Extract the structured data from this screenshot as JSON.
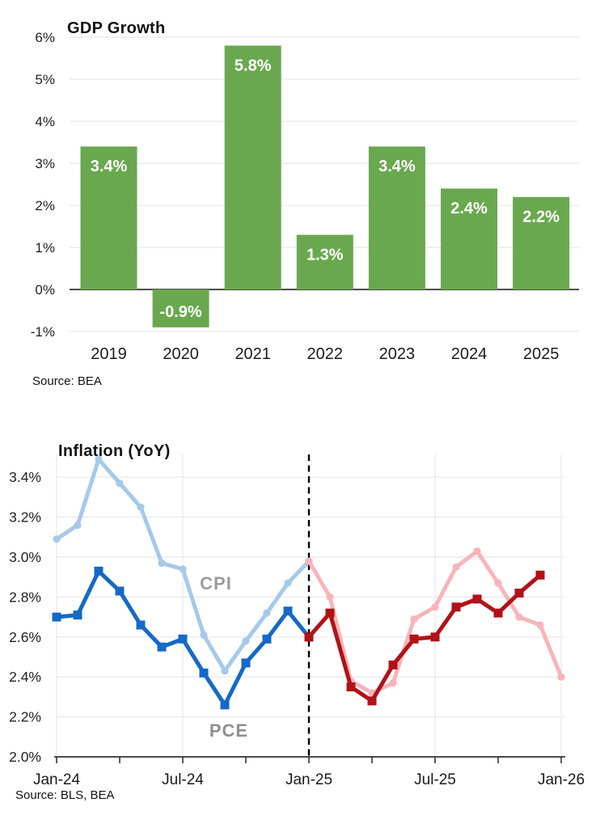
{
  "chart_data": [
    {
      "type": "bar",
      "title": "GDP Growth",
      "source": "Source: BEA",
      "xlabel": "",
      "ylabel": "",
      "categories": [
        "2019",
        "2020",
        "2021",
        "2022",
        "2023",
        "2024",
        "2025"
      ],
      "values": [
        3.4,
        -0.9,
        5.8,
        1.3,
        3.4,
        2.4,
        2.2
      ],
      "data_labels": [
        "3.4%",
        "-0.9%",
        "5.8%",
        "1.3%",
        "3.4%",
        "2.4%",
        "2.2%"
      ],
      "y_ticks": [
        "6%",
        "5%",
        "4%",
        "3%",
        "2%",
        "1%",
        "0%",
        "-1%"
      ],
      "y_tick_values": [
        6,
        5,
        4,
        3,
        2,
        1,
        0,
        -1
      ],
      "ylim": [
        -1.2,
        6.2
      ],
      "grid": "horizontal",
      "bar_color": "#6aa84f",
      "bar_label_color": "#ffffff",
      "zero_line_color": "#333333"
    },
    {
      "type": "line",
      "title": "Inflation (YoY)",
      "source": "Source: BLS, BEA",
      "xlabel": "",
      "ylabel": "",
      "x_unit": "months since Jan-2024",
      "x_tick_labels": [
        "Jan-24",
        "Jul-24",
        "Jan-25",
        "Jul-25",
        "Jan-26"
      ],
      "x_tick_months": [
        0,
        6,
        12,
        18,
        24
      ],
      "minor_tick_months": [
        3,
        9,
        15,
        21
      ],
      "gridline_months": [
        0,
        6,
        18,
        24
      ],
      "y_ticks": [
        "3.4%",
        "3.2%",
        "3.0%",
        "2.8%",
        "2.6%",
        "2.4%",
        "2.2%",
        "2.0%"
      ],
      "y_tick_values": [
        3.4,
        3.2,
        3.0,
        2.8,
        2.6,
        2.4,
        2.2,
        2.0
      ],
      "ylim": [
        2.0,
        3.5
      ],
      "divider": {
        "month": 12,
        "style": "dashed",
        "color": "#000000",
        "meaning": "forecast start (Jan-25)"
      },
      "legend_position": "inline-annotations",
      "annotations": [
        {
          "text": "CPI",
          "color": "#9c9c9c",
          "x_month": 7.6,
          "y_value": 2.86
        },
        {
          "text": "PCE",
          "color": "#8f8f8f",
          "x_month": 8.2,
          "y_value": 2.13
        }
      ],
      "series": [
        {
          "name": "CPI actual",
          "color": "#a6c9ea",
          "marker": "circle",
          "line_width": 5,
          "start_month": 0,
          "values": [
            3.09,
            3.16,
            3.49,
            3.37,
            3.25,
            2.97,
            2.94,
            2.61,
            2.43,
            2.58,
            2.72,
            2.87,
            2.98
          ]
        },
        {
          "name": "PCE actual",
          "color": "#1569c7",
          "marker": "square",
          "line_width": 5,
          "start_month": 0,
          "values": [
            2.7,
            2.71,
            2.93,
            2.83,
            2.66,
            2.55,
            2.59,
            2.42,
            2.26,
            2.47,
            2.59,
            2.73,
            2.6
          ]
        },
        {
          "name": "CPI forecast",
          "color": "#f8b4ba",
          "marker": "circle",
          "line_width": 5,
          "start_month": 12,
          "values": [
            2.98,
            2.8,
            2.38,
            2.32,
            2.37,
            2.69,
            2.75,
            2.95,
            3.03,
            2.87,
            2.7,
            2.66,
            2.4
          ]
        },
        {
          "name": "PCE forecast",
          "color": "#b01218",
          "marker": "square",
          "line_width": 5,
          "start_month": 12,
          "values": [
            2.6,
            2.72,
            2.35,
            2.28,
            2.46,
            2.59,
            2.6,
            2.75,
            2.79,
            2.72,
            2.82,
            2.91
          ]
        }
      ]
    }
  ]
}
